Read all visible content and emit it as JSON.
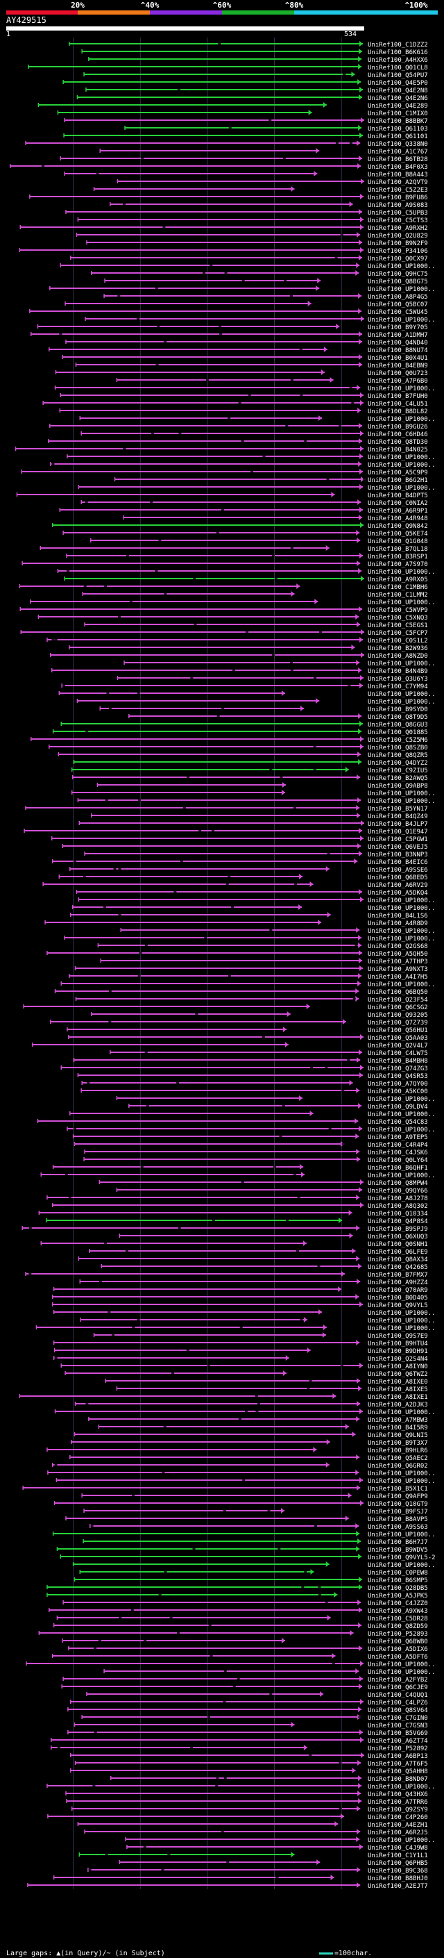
{
  "colors": {
    "scale": [
      "#e8102a",
      "#f07a19",
      "#8a2be2",
      "#19b12a",
      "#1ec8e6"
    ],
    "magenta": "#d24fd6",
    "green": "#28d23a",
    "orange": "#f08a1c",
    "gap": "#1a1a1a",
    "grid": "#333355",
    "text": "#ffffff"
  },
  "scale": {
    "labels": [
      "20%",
      "^40%",
      "^60%",
      "^80%",
      "^100%"
    ]
  },
  "query": {
    "title": "AY429515",
    "start": "1",
    "end": "534"
  },
  "legend": {
    "text": "Large gaps: ▲(in Query)/~ (in Subject)",
    "scale_text": "=100char."
  },
  "chart_data": {
    "type": "alignment",
    "query_length": 534,
    "hit_labels": [
      "UniRef100_C1DZZ2",
      "UniRef100_B6K616",
      "UniRef100_A4HXX6",
      "UniRef100_Q01CL8",
      "UniRef100_Q54PU7",
      "UniRef100_Q4E5P0",
      "UniRef100_Q4E2N8",
      "UniRef100_Q4E2N6",
      "UniRef100_Q4E289",
      "UniRef100_C1MIX0",
      "UniRef100_B8BBK7",
      "UniRef100_Q61103",
      "UniRef100_Q61101",
      "UniRef100_Q338N0",
      "UniRef100_A1C767",
      "UniRef100_B6TB28",
      "UniRef100_B4F0X3",
      "UniRef100_B8A443",
      "UniRef100_A2QVT9",
      "UniRef100_C5Z2E3",
      "UniRef100_B9FU86",
      "UniRef100_A9S083",
      "UniRef100_C5UPB3",
      "UniRef100_C5CTS3",
      "UniRef100_A9RXH2",
      "UniRef100_Q2U829",
      "UniRef100_B9N2F9",
      "UniRef100_P34106",
      "UniRef100_Q0CX97",
      "UniRef100_UP1000..",
      "UniRef100_Q9HC75",
      "UniRef100_Q8BG75",
      "UniRef100_UP1000..",
      "UniRef100_A8P4G5",
      "UniRef100_Q5BC07",
      "UniRef100_C5WU45",
      "UniRef100_UP1000..",
      "UniRef100_B9Y705",
      "UniRef100_A1DMH7",
      "UniRef100_Q4ND40",
      "UniRef100_B8NU74",
      "UniRef100_B0X4U1",
      "UniRef100_B4EBN9",
      "UniRef100_Q0U723",
      "UniRef100_A7P6B0",
      "UniRef100_UP1000..",
      "UniRef100_B7FUH0",
      "UniRef100_C4LU51",
      "UniRef100_B8DL82",
      "UniRef100_UP1000..",
      "UniRef100_B9GU26",
      "UniRef100_C6HD46",
      "UniRef100_Q8TD30",
      "UniRef100_B4N025",
      "UniRef100_UP1000..",
      "UniRef100_UP1000..",
      "UniRef100_A5C9P9",
      "UniRef100_B6G2H1",
      "UniRef100_UP1000..",
      "UniRef100_B4DPT5",
      "UniRef100_C0NIA2",
      "UniRef100_A6R9P1",
      "UniRef100_A4R948",
      "UniRef100_Q9N842",
      "UniRef100_Q5KE74",
      "UniRef100_Q1G048",
      "UniRef100_B7QL18",
      "UniRef100_B3RSP1",
      "UniRef100_A7S970",
      "UniRef100_UP1000..",
      "UniRef100_A9RX05",
      "UniRef100_C1MBH6",
      "UniRef100_C1LMM2",
      "UniRef100_UP1000..",
      "UniRef100_C5WVP9",
      "UniRef100_C5XNQ3",
      "UniRef100_C5EGS1",
      "UniRef100_C5FCP7",
      "UniRef100_C0S1L2",
      "UniRef100_B2W936",
      "UniRef100_A8NZD0",
      "UniRef100_UP1000..",
      "UniRef100_B4N4B9",
      "UniRef100_Q3U6Y3",
      "UniRef100_C7YM94",
      "UniRef100_UP1000..",
      "UniRef100_UP1000..",
      "UniRef100_B9SYD0",
      "UniRef100_Q8T9D5",
      "UniRef100_Q8GGU3",
      "UniRef100_Q01885",
      "UniRef100_C5Z5M6",
      "UniRef100_Q8SZB0",
      "UniRef100_Q8QZR5",
      "UniRef100_Q4DYZ2",
      "UniRef100_C9ZIU5",
      "UniRef100_B2AWQ5",
      "UniRef100_Q9ABP8",
      "UniRef100_UP1000..",
      "UniRef100_UP1000..",
      "UniRef100_B5YN17",
      "UniRef100_B4QZ49",
      "UniRef100_B4JLP7",
      "UniRef100_Q1E947",
      "UniRef100_C5PGW1",
      "UniRef100_Q6VEJ5",
      "UniRef100_B3NNP3",
      "UniRef100_B4EIC6",
      "UniRef100_A9SSE6",
      "UniRef100_Q6BED5",
      "UniRef100_A6RV29",
      "UniRef100_A5DKQ4",
      "UniRef100_UP1000..",
      "UniRef100_UP1000..",
      "UniRef100_B4L1S6",
      "UniRef100_A4R8D9",
      "UniRef100_UP1000..",
      "UniRef100_UP1000..",
      "UniRef100_Q2GS68",
      "UniRef100_A5QH50",
      "UniRef100_A7THP3",
      "UniRef100_A9NXT3",
      "UniRef100_A4I7H5",
      "UniRef100_UP1000..",
      "UniRef100_Q6BQ50",
      "UniRef100_Q23F54",
      "UniRef100_Q6CSG2",
      "UniRef100_Q93205",
      "UniRef100_Q7Z739",
      "UniRef100_Q56HU1",
      "UniRef100_Q5AA03",
      "UniRef100_Q2V4L7",
      "UniRef100_C4LW75",
      "UniRef100_B4MBH8",
      "UniRef100_Q74ZG3",
      "UniRef100_Q4SR53",
      "UniRef100_A7QY00",
      "UniRef100_A5KC00",
      "UniRef100_UP1000..",
      "UniRef100_Q9LDV4",
      "UniRef100_UP1000..",
      "UniRef100_Q54C83",
      "UniRef100_UP1000..",
      "UniRef100_A9TEP5",
      "UniRef100_C4R4P4",
      "UniRef100_C4JSK6",
      "UniRef100_Q0LY64",
      "UniRef100_B6QHF1",
      "UniRef100_UP1000..",
      "UniRef100_Q8MPW4",
      "UniRef100_Q9QY66",
      "UniRef100_A8J278",
      "UniRef100_A8Q302",
      "UniRef100_Q10334",
      "UniRef100_Q4P8S4",
      "UniRef100_B9SPJ9",
      "UniRef100_Q6XUQ3",
      "UniRef100_Q0SNH1",
      "UniRef100_Q6LFE9",
      "UniRef100_Q8AX34",
      "UniRef100_Q42685",
      "UniRef100_B7FMX7",
      "UniRef100_A9HZZ4",
      "UniRef100_Q70AR9",
      "UniRef100_B0D405",
      "UniRef100_Q9VYL5",
      "UniRef100_UP1000..",
      "UniRef100_UP1000..",
      "UniRef100_UP1000..",
      "UniRef100_Q9S7E9",
      "UniRef100_B9HTU4",
      "UniRef100_B9DH91",
      "UniRef100_Q2S4N4",
      "UniRef100_A8IYN0",
      "UniRef100_Q6TWZ2",
      "UniRef100_A8IXE0",
      "UniRef100_A8IXE5",
      "UniRef100_A8IXE1",
      "UniRef100_A2DJK3",
      "UniRef100_UP1000..",
      "UniRef100_A7MBW3",
      "UniRef100_B4I5R9",
      "UniRef100_Q9LNI5",
      "UniRef100_B9T3X7",
      "UniRef100_B9HLR6",
      "UniRef100_Q5AEC2",
      "UniRef100_Q6GR02",
      "UniRef100_UP1000..",
      "UniRef100_UP1000..",
      "UniRef100_B5X1C1",
      "UniRef100_Q9AFP9",
      "UniRef100_Q10GT9",
      "UniRef100_B9FSJ7",
      "UniRef100_B8AVP5",
      "UniRef100_A9SS63",
      "UniRef100_UP1000..",
      "UniRef100_B6H7J7",
      "UniRef100_B9WDV5",
      "UniRef100_Q9VYL5-2",
      "UniRef100_UP1000..",
      "UniRef100_C0PEW8",
      "UniRef100_B6SMP5",
      "UniRef100_Q28DB5",
      "UniRef100_A5JPK5",
      "UniRef100_C4JZZ0",
      "UniRef100_A9XW43",
      "UniRef100_C5DR28",
      "UniRef100_Q8ZD59",
      "UniRef100_P52893",
      "UniRef100_Q6BWB0",
      "UniRef100_A5DIX6",
      "UniRef100_A5DFT6",
      "UniRef100_UP1000..",
      "UniRef100_UP1000..",
      "UniRef100_A2FYB2",
      "UniRef100_Q6CJE9",
      "UniRef100_C4QUQ1",
      "UniRef100_C4LPZ6",
      "UniRef100_Q8SV64",
      "UniRef100_C7GIN0",
      "UniRef100_C7GSN3",
      "UniRef100_B5VG69",
      "UniRef100_A6ZT74",
      "UniRef100_P52892",
      "UniRef100_A6BP13",
      "UniRef100_A7T6F5",
      "UniRef100_Q5AHH8",
      "UniRef100_B8ND07",
      "UniRef100_UP1000..",
      "UniRef100_Q43HX6",
      "UniRef100_A7TRR6",
      "UniRef100_Q9ZSY9",
      "UniRef100_C4P260",
      "UniRef100_A4EZH1",
      "UniRef100_A6R2J5",
      "UniRef100_UP1000..",
      "UniRef100_C4J9W8",
      "UniRef100_C1Y1L1",
      "UniRef100_Q6PHB5",
      "UniRef100_B9C368",
      "UniRef100_B8BHJ0",
      "UniRef100_A2EJT7"
    ]
  }
}
